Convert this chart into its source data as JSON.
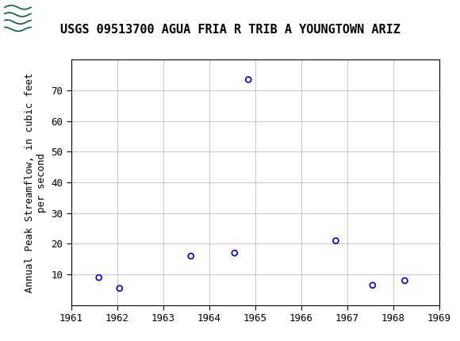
{
  "title": "USGS 09513700 AGUA FRIA R TRIB A YOUNGTOWN ARIZ",
  "ylabel_line1": "Annual Peak Streamflow, in cubic feet",
  "ylabel_line2": "per second",
  "years": [
    1961.6,
    1962.05,
    1963.6,
    1964.55,
    1964.85,
    1966.75,
    1967.55,
    1968.25
  ],
  "values": [
    9,
    5.5,
    16,
    17,
    73.5,
    21,
    6.5,
    8
  ],
  "xlim": [
    1961,
    1969
  ],
  "ylim": [
    0,
    80
  ],
  "yticks": [
    10,
    20,
    30,
    40,
    50,
    60,
    70
  ],
  "xticks": [
    1961,
    1962,
    1963,
    1964,
    1965,
    1966,
    1967,
    1968,
    1969
  ],
  "marker_color": "#0000cc",
  "marker_size": 5,
  "grid_color": "#bbbbbb",
  "plot_bg": "#ffffff",
  "header_bg": "#006633",
  "title_fontsize": 11,
  "axis_label_fontsize": 9,
  "tick_fontsize": 9
}
